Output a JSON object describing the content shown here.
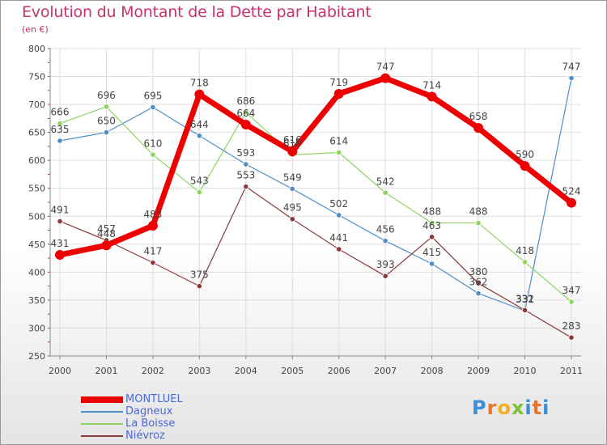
{
  "header": {
    "title": "Evolution du Montant de la Dette par Habitant",
    "subtitle": "(en €)"
  },
  "logo": {
    "letters": [
      "P",
      "r",
      "o",
      "x",
      "i",
      "t",
      "i"
    ],
    "colors": [
      "#3a8fd8",
      "#e8742a",
      "#f2b01e",
      "#7cbf3a",
      "#3a8fd8",
      "#e8742a",
      "#3a8fd8"
    ]
  },
  "chart_data": {
    "type": "line",
    "title": "Evolution du Montant de la Dette par Habitant",
    "ylabel": "(en €)",
    "x": [
      "2000",
      "2001",
      "2002",
      "2003",
      "2004",
      "2005",
      "2006",
      "2007",
      "2008",
      "2009",
      "2010",
      "2011"
    ],
    "ylim": [
      250,
      800
    ],
    "yticks": [
      250,
      300,
      350,
      400,
      450,
      500,
      550,
      600,
      650,
      700,
      750,
      800
    ],
    "grid": true,
    "legend_position": "bottom-left",
    "series": [
      {
        "name": "MONTLUEL",
        "color": "#ee0000",
        "values": [
          431,
          448,
          483,
          718,
          664,
          616,
          719,
          747,
          714,
          658,
          590,
          524
        ]
      },
      {
        "name": "Dagneux",
        "color": "#4f8fc8",
        "values": [
          635,
          650,
          695,
          644,
          593,
          549,
          502,
          456,
          415,
          362,
          331,
          747
        ]
      },
      {
        "name": "La Boisse",
        "color": "#8fd460",
        "values": [
          666,
          696,
          610,
          543,
          686,
          610,
          614,
          542,
          488,
          488,
          418,
          347
        ]
      },
      {
        "name": "Niévroz",
        "color": "#8a3a3a",
        "values": [
          491,
          457,
          417,
          375,
          553,
          495,
          441,
          393,
          463,
          380,
          332,
          283
        ]
      }
    ]
  }
}
